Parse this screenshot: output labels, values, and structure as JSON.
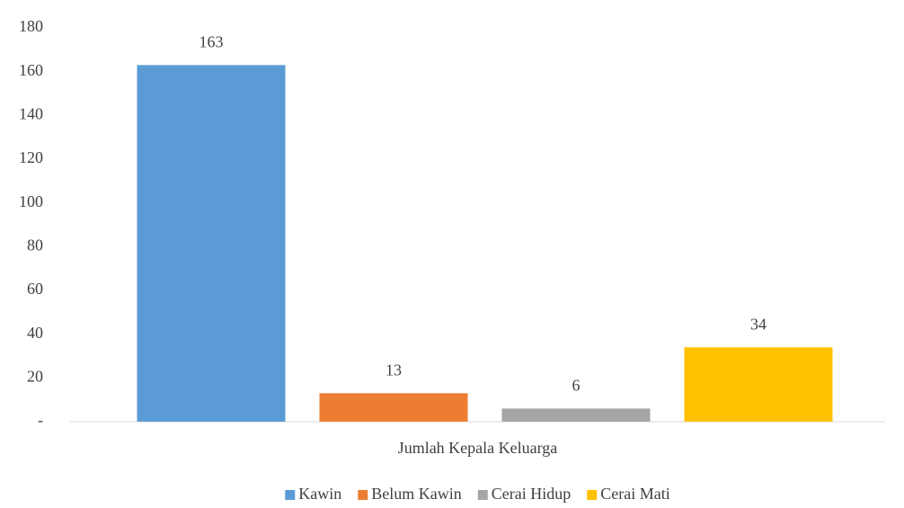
{
  "chart_data": {
    "type": "bar",
    "categories": [
      "Jumlah Kepala Keluarga"
    ],
    "series": [
      {
        "name": "Kawin",
        "color": "#5b9bd5",
        "values": [
          163
        ]
      },
      {
        "name": "Belum Kawin",
        "color": "#ed7d31",
        "values": [
          13
        ]
      },
      {
        "name": "Cerai Hidup",
        "color": "#a5a5a5",
        "values": [
          6
        ]
      },
      {
        "name": "Cerai Mati",
        "color": "#ffc000",
        "values": [
          34
        ]
      }
    ],
    "ylim": [
      0,
      180
    ],
    "yticks": [
      {
        "value": 0,
        "label": "-"
      },
      20,
      40,
      60,
      80,
      100,
      120,
      140,
      160,
      180
    ],
    "grid": false,
    "legend": "bottom"
  }
}
